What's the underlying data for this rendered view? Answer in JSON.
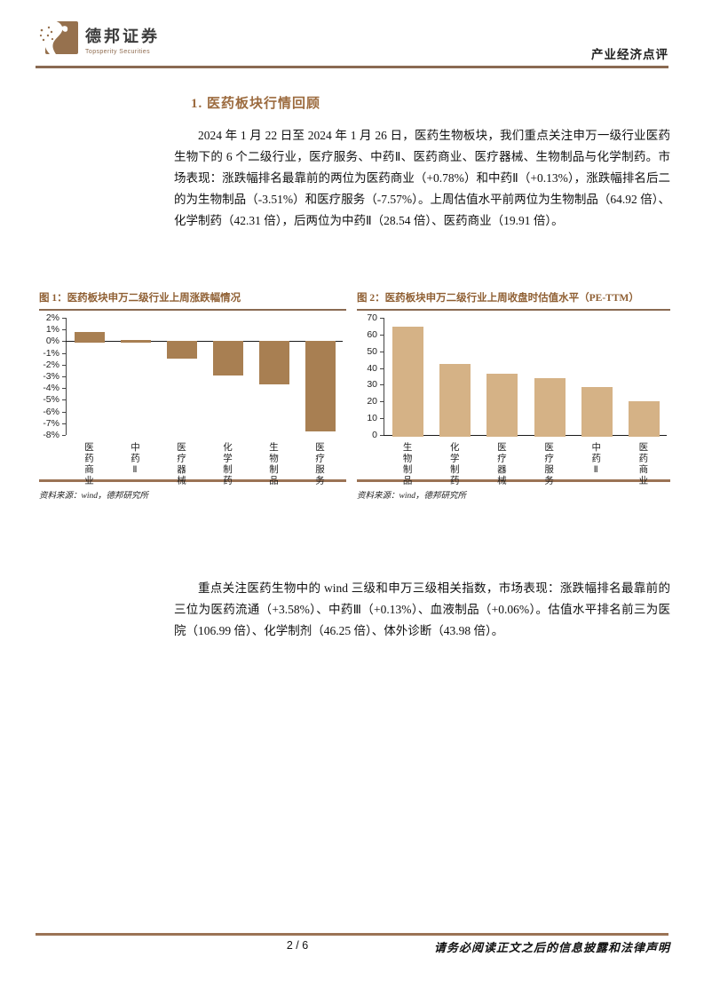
{
  "header": {
    "brand_cn": "德邦证券",
    "brand_en": "Topsperity Securities",
    "report_type": "产业经济点评"
  },
  "section_heading": "1. 医药板块行情回顾",
  "paragraphs": [
    "2024 年 1 月 22 日至 2024 年 1 月 26 日，医药生物板块，我们重点关注申万一级行业医药生物下的 6 个二级行业，医疗服务、中药Ⅱ、医药商业、医疗器械、生物制品与化学制药。市场表现：涨跌幅排名最靠前的两位为医药商业（+0.78%）和中药Ⅱ（+0.13%），涨跌幅排名后二的为生物制品（-3.51%）和医疗服务（-7.57%）。上周估值水平前两位为生物制品（64.92 倍）、化学制药（42.31 倍），后两位为中药Ⅱ（28.54 倍）、医药商业（19.91 倍）。",
    "重点关注医药生物中的 wind 三级和申万三级相关指数，市场表现：涨跌幅排名最靠前的三位为医药流通（+3.58%）、中药Ⅲ（+0.13%）、血液制品（+0.06%）。估值水平排名前三为医院（106.99 倍）、化学制剂（46.25 倍）、体外诊断（43.98 倍）。"
  ],
  "figures": [
    {
      "title": "图 1：医药板块申万二级行业上周涨跌幅情况",
      "source": "资料来源：wind，德邦研究所"
    },
    {
      "title": "图 2：医药板块申万二级行业上周收盘时估值水平（PE-TTM）",
      "source": "资料来源：wind，德邦研究所"
    }
  ],
  "chart_data": [
    {
      "type": "bar",
      "title": "医药板块申万二级行业上周涨跌幅情况",
      "categories": [
        "医药商业",
        "中药Ⅱ",
        "医疗器械",
        "化学制药",
        "生物制品",
        "医疗服务"
      ],
      "values": [
        0.78,
        0.13,
        -1.3,
        -2.8,
        -3.51,
        -7.57
      ],
      "ylim": [
        -8,
        2
      ],
      "ytick_step": 1,
      "ytick_suffix": "%",
      "xlabel": "",
      "ylabel": "",
      "grid": false,
      "legend_position": "none",
      "bar_color": "#A87F52"
    },
    {
      "type": "bar",
      "title": "医药板块申万二级行业上周收盘时估值水平（PE-TTM）",
      "categories": [
        "生物制品",
        "化学制药",
        "医疗器械",
        "医疗服务",
        "中药Ⅱ",
        "医药商业"
      ],
      "values": [
        64.92,
        42.31,
        36.5,
        33.8,
        28.54,
        19.91
      ],
      "ylim": [
        0,
        70
      ],
      "ytick_step": 10,
      "ytick_suffix": "",
      "xlabel": "",
      "ylabel": "",
      "grid": false,
      "legend_position": "none",
      "bar_color": "#D5B286"
    }
  ],
  "footer": {
    "page_number": "2 / 6",
    "disclaimer": "请务必阅读正文之后的信息披露和法律声明"
  },
  "colors": {
    "brand_brown": "#8A6A52",
    "heading_brown": "#9C6B3F",
    "figure_title_brown": "#8F5F33",
    "bar_fig1": "#A87F52",
    "bar_fig2": "#D5B286"
  }
}
